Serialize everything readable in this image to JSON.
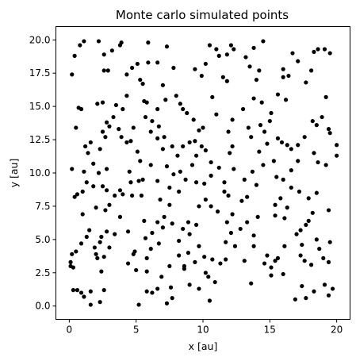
{
  "chart_data": {
    "type": "scatter",
    "title": "Monte carlo simulated points",
    "xlabel": "x [au]",
    "ylabel": "y [au]",
    "xlim": [
      -1.0,
      21.0
    ],
    "ylim": [
      -1.0,
      21.0
    ],
    "xticks": [
      0,
      5,
      10,
      15,
      20
    ],
    "yticks": [
      0.0,
      2.5,
      5.0,
      7.5,
      10.0,
      12.5,
      15.0,
      17.5,
      20.0
    ],
    "xtick_labels": [
      "0",
      "5",
      "10",
      "15",
      "20"
    ],
    "ytick_labels": [
      "0.0",
      "2.5",
      "5.0",
      "7.5",
      "10.0",
      "12.5",
      "15.0",
      "17.5",
      "20.0"
    ],
    "grid": false,
    "marker_color": "#000000",
    "series": [
      {
        "points": [
          [
            0.2,
            17.4
          ],
          [
            0.4,
            18.8
          ],
          [
            0.8,
            19.6
          ],
          [
            1.1,
            19.9
          ],
          [
            2.2,
            19.9
          ],
          [
            2.6,
            18.9
          ],
          [
            2.6,
            17.7
          ],
          [
            2.9,
            17.7
          ],
          [
            3.2,
            19.2
          ],
          [
            3.8,
            19.6
          ],
          [
            3.9,
            19.8
          ],
          [
            4.3,
            17.4
          ],
          [
            4.7,
            17.9
          ],
          [
            5.1,
            18.2
          ],
          [
            5.3,
            17.0
          ],
          [
            5.5,
            16.7
          ],
          [
            5.9,
            18.3
          ],
          [
            5.9,
            19.8
          ],
          [
            6.6,
            18.3
          ],
          [
            7.0,
            16.6
          ],
          [
            7.3,
            19.5
          ],
          [
            7.8,
            17.9
          ],
          [
            9.4,
            17.8
          ],
          [
            9.9,
            17.3
          ],
          [
            10.2,
            18.2
          ],
          [
            10.5,
            19.6
          ],
          [
            11.0,
            19.3
          ],
          [
            11.2,
            18.8
          ],
          [
            11.8,
            18.9
          ],
          [
            12.1,
            19.6
          ],
          [
            12.3,
            19.3
          ],
          [
            11.5,
            17.2
          ],
          [
            11.8,
            16.9
          ],
          [
            13.2,
            18.7
          ],
          [
            13.5,
            18.0
          ],
          [
            13.8,
            19.4
          ],
          [
            14.0,
            17.0
          ],
          [
            14.2,
            17.7
          ],
          [
            14.5,
            19.9
          ],
          [
            16.0,
            17.8
          ],
          [
            16.4,
            17.3
          ],
          [
            16.7,
            19.0
          ],
          [
            17.1,
            18.4
          ],
          [
            18.1,
            17.7
          ],
          [
            18.3,
            19.1
          ],
          [
            18.6,
            19.3
          ],
          [
            19.1,
            19.3
          ],
          [
            19.5,
            19.0
          ],
          [
            17.7,
            16.8
          ],
          [
            16.0,
            17.2
          ],
          [
            15.6,
            15.9
          ],
          [
            16.2,
            15.5
          ],
          [
            15.1,
            14.5
          ],
          [
            15.0,
            13.9
          ],
          [
            13.4,
            13.4
          ],
          [
            13.6,
            12.7
          ],
          [
            14.3,
            13.6
          ],
          [
            14.6,
            13.1
          ],
          [
            14.2,
            11.6
          ],
          [
            14.8,
            12.2
          ],
          [
            15.6,
            12.6
          ],
          [
            15.9,
            12.3
          ],
          [
            16.3,
            12.1
          ],
          [
            16.6,
            11.8
          ],
          [
            17.1,
            12.1
          ],
          [
            17.6,
            12.7
          ],
          [
            18.2,
            13.9
          ],
          [
            18.5,
            13.6
          ],
          [
            18.9,
            14.2
          ],
          [
            19.2,
            15.7
          ],
          [
            19.4,
            13.3
          ],
          [
            19.5,
            13.0
          ],
          [
            20.0,
            12.1
          ],
          [
            20.0,
            11.3
          ],
          [
            19.2,
            10.6
          ],
          [
            18.6,
            10.8
          ],
          [
            18.3,
            11.5
          ],
          [
            17.1,
            10.9
          ],
          [
            16.6,
            10.2
          ],
          [
            16.0,
            9.5
          ],
          [
            15.5,
            9.7
          ],
          [
            15.8,
            8.1
          ],
          [
            15.4,
            6.8
          ],
          [
            15.4,
            7.6
          ],
          [
            16.1,
            6.6
          ],
          [
            17.0,
            5.4
          ],
          [
            17.3,
            5.7
          ],
          [
            17.7,
            6.1
          ],
          [
            17.4,
            4.6
          ],
          [
            17.3,
            3.8
          ],
          [
            17.6,
            3.4
          ],
          [
            18.1,
            3.1
          ],
          [
            18.7,
            4.3
          ],
          [
            19.0,
            3.6
          ],
          [
            19.4,
            3.3
          ],
          [
            19.1,
            1.6
          ],
          [
            19.7,
            1.3
          ],
          [
            19.4,
            0.8
          ],
          [
            18.3,
            1.1
          ],
          [
            17.4,
            1.5
          ],
          [
            16.9,
            0.5
          ],
          [
            17.7,
            0.6
          ],
          [
            15.4,
            3.4
          ],
          [
            14.8,
            3.8
          ],
          [
            15.1,
            2.9
          ],
          [
            13.6,
            1.7
          ],
          [
            13.8,
            4.5
          ],
          [
            14.1,
            6.7
          ],
          [
            13.3,
            6.3
          ],
          [
            12.8,
            5.8
          ],
          [
            12.1,
            5.5
          ],
          [
            11.7,
            4.8
          ],
          [
            11.3,
            3.2
          ],
          [
            10.7,
            3.5
          ],
          [
            10.4,
            2.2
          ],
          [
            10.9,
            1.8
          ],
          [
            10.2,
            2.5
          ],
          [
            10.5,
            0.4
          ],
          [
            9.7,
            1.3
          ],
          [
            9.0,
            1.6
          ],
          [
            8.6,
            3.0
          ],
          [
            8.2,
            3.8
          ],
          [
            7.5,
            3.0
          ],
          [
            6.9,
            2.2
          ],
          [
            7.6,
            1.4
          ],
          [
            7.7,
            0.6
          ],
          [
            7.3,
            0.2
          ],
          [
            6.6,
            1.3
          ],
          [
            6.2,
            1.0
          ],
          [
            5.8,
            1.1
          ],
          [
            5.8,
            2.6
          ],
          [
            5.8,
            3.6
          ],
          [
            6.1,
            4.3
          ],
          [
            6.2,
            5.5
          ],
          [
            6.6,
            6.3
          ],
          [
            7.1,
            6.7
          ],
          [
            7.5,
            7.6
          ],
          [
            7.7,
            6.2
          ],
          [
            8.2,
            4.9
          ],
          [
            8.5,
            5.8
          ],
          [
            8.9,
            6.3
          ],
          [
            9.5,
            6.1
          ],
          [
            9.7,
            7.5
          ],
          [
            10.2,
            8.0
          ],
          [
            10.6,
            7.5
          ],
          [
            11.1,
            7.1
          ],
          [
            11.8,
            6.3
          ],
          [
            12.2,
            6.9
          ],
          [
            12.9,
            7.9
          ],
          [
            13.3,
            8.2
          ],
          [
            13.1,
            9.5
          ],
          [
            12.3,
            10.3
          ],
          [
            11.6,
            9.3
          ],
          [
            11.2,
            10.4
          ],
          [
            10.6,
            10.8
          ],
          [
            10.2,
            11.7
          ],
          [
            9.9,
            12.0
          ],
          [
            9.5,
            11.3
          ],
          [
            9.2,
            10.6
          ],
          [
            8.7,
            9.5
          ],
          [
            8.3,
            10.1
          ],
          [
            7.8,
            9.9
          ],
          [
            7.3,
            10.5
          ],
          [
            7.0,
            11.8
          ],
          [
            6.6,
            12.6
          ],
          [
            6.1,
            13.1
          ],
          [
            6.2,
            13.9
          ],
          [
            6.6,
            14.8
          ],
          [
            7.2,
            15.5
          ],
          [
            8.0,
            15.8
          ],
          [
            8.3,
            15.2
          ],
          [
            8.5,
            14.8
          ],
          [
            8.8,
            14.5
          ],
          [
            9.3,
            14.0
          ],
          [
            9.7,
            13.2
          ],
          [
            9.4,
            12.4
          ],
          [
            9.0,
            12.3
          ],
          [
            8.5,
            12.0
          ],
          [
            8.1,
            11.3
          ],
          [
            7.7,
            12.0
          ],
          [
            6.1,
            10.6
          ],
          [
            5.3,
            10.9
          ],
          [
            5.1,
            11.6
          ],
          [
            4.6,
            12.4
          ],
          [
            4.3,
            12.3
          ],
          [
            3.9,
            12.7
          ],
          [
            3.7,
            13.3
          ],
          [
            3.3,
            14.2
          ],
          [
            3.0,
            13.5
          ],
          [
            2.8,
            13.8
          ],
          [
            2.5,
            13.1
          ],
          [
            2.7,
            12.7
          ],
          [
            2.3,
            11.8
          ],
          [
            1.6,
            12.3
          ],
          [
            1.4,
            11.5
          ],
          [
            1.2,
            12.0
          ],
          [
            0.9,
            14.8
          ],
          [
            0.7,
            14.9
          ],
          [
            0.5,
            13.4
          ],
          [
            2.1,
            15.2
          ],
          [
            2.5,
            15.3
          ],
          [
            3.5,
            15.1
          ],
          [
            4.3,
            15.8
          ],
          [
            5.6,
            15.4
          ],
          [
            5.8,
            15.3
          ],
          [
            5.7,
            14.2
          ],
          [
            4.0,
            14.8
          ],
          [
            4.8,
            13.4
          ],
          [
            6.7,
            13.5
          ],
          [
            7.1,
            12.7
          ],
          [
            10.0,
            13.4
          ],
          [
            10.7,
            15.7
          ],
          [
            11.0,
            14.4
          ],
          [
            12.2,
            14.0
          ],
          [
            11.9,
            13.1
          ],
          [
            12.0,
            11.5
          ],
          [
            12.2,
            12.0
          ],
          [
            13.0,
            14.8
          ],
          [
            13.8,
            15.6
          ],
          [
            14.4,
            15.3
          ],
          [
            10.1,
            9.2
          ],
          [
            10.6,
            9.8
          ],
          [
            11.6,
            8.6
          ],
          [
            11.9,
            8.3
          ],
          [
            9.5,
            9.3
          ],
          [
            8.2,
            8.6
          ],
          [
            7.5,
            8.9
          ],
          [
            6.8,
            8.0
          ],
          [
            6.6,
            9.4
          ],
          [
            5.5,
            9.5
          ],
          [
            5.2,
            9.4
          ],
          [
            4.6,
            9.3
          ],
          [
            4.0,
            8.4
          ],
          [
            3.8,
            8.7
          ],
          [
            3.4,
            8.3
          ],
          [
            2.8,
            8.7
          ],
          [
            2.5,
            9.0
          ],
          [
            1.8,
            9.0
          ],
          [
            1.3,
            9.3
          ],
          [
            1.0,
            8.6
          ],
          [
            0.6,
            8.4
          ],
          [
            0.4,
            8.2
          ],
          [
            0.2,
            10.3
          ],
          [
            1.1,
            10.1
          ],
          [
            1.8,
            10.7
          ],
          [
            2.2,
            10.0
          ],
          [
            2.8,
            10.3
          ],
          [
            4.5,
            10.1
          ],
          [
            3.0,
            7.6
          ],
          [
            2.7,
            7.2
          ],
          [
            2.0,
            7.4
          ],
          [
            1.0,
            6.9
          ],
          [
            1.5,
            5.7
          ],
          [
            1.3,
            5.2
          ],
          [
            0.9,
            4.7
          ],
          [
            0.5,
            4.1
          ],
          [
            0.2,
            3.9
          ],
          [
            0.1,
            3.3
          ],
          [
            0.3,
            2.9
          ],
          [
            0.1,
            3.0
          ],
          [
            1.9,
            4.4
          ],
          [
            2.3,
            4.8
          ],
          [
            2.4,
            5.2
          ],
          [
            2.8,
            5.6
          ],
          [
            3.0,
            4.4
          ],
          [
            2.6,
            3.7
          ],
          [
            2.1,
            3.6
          ],
          [
            2.0,
            3.9
          ],
          [
            2.4,
            2.6
          ],
          [
            2.6,
            1.2
          ],
          [
            2.3,
            0.3
          ],
          [
            1.6,
            1.1
          ],
          [
            1.1,
            0.7
          ],
          [
            0.9,
            1.0
          ],
          [
            0.6,
            1.2
          ],
          [
            0.3,
            1.2
          ],
          [
            1.6,
            0.1
          ],
          [
            3.4,
            5.4
          ],
          [
            3.8,
            6.7
          ],
          [
            4.4,
            5.6
          ],
          [
            4.7,
            8.3
          ],
          [
            5.4,
            8.3
          ],
          [
            5.7,
            5.1
          ],
          [
            5.6,
            6.4
          ],
          [
            4.9,
            4.1
          ],
          [
            4.4,
            3.2
          ],
          [
            5.0,
            2.7
          ],
          [
            4.8,
            3.9
          ],
          [
            5.2,
            0.1
          ],
          [
            6.7,
            4.7
          ],
          [
            7.0,
            5.9
          ],
          [
            8.6,
            2.8
          ],
          [
            8.9,
            4.0
          ],
          [
            9.7,
            4.5
          ],
          [
            9.0,
            5.4
          ],
          [
            9.4,
            3.3
          ],
          [
            10.1,
            3.7
          ],
          [
            11.7,
            3.5
          ],
          [
            12.4,
            4.5
          ],
          [
            14.6,
            3.2
          ],
          [
            13.7,
            10.1
          ],
          [
            14.0,
            9.1
          ],
          [
            14.5,
            10.6
          ],
          [
            15.3,
            10.9
          ],
          [
            16.6,
            8.9
          ],
          [
            17.2,
            8.6
          ],
          [
            17.9,
            8.1
          ],
          [
            18.5,
            8.5
          ],
          [
            18.2,
            7.0
          ],
          [
            17.9,
            6.4
          ],
          [
            18.5,
            5.0
          ],
          [
            19.4,
            7.2
          ],
          [
            19.5,
            4.8
          ],
          [
            16.3,
            7.4
          ],
          [
            13.8,
            5.3
          ],
          [
            13.1,
            3.4
          ],
          [
            16.1,
            4.5
          ],
          [
            15.6,
            3.6
          ],
          [
            16.0,
            2.4
          ],
          [
            15.1,
            2.3
          ]
        ]
      }
    ]
  }
}
